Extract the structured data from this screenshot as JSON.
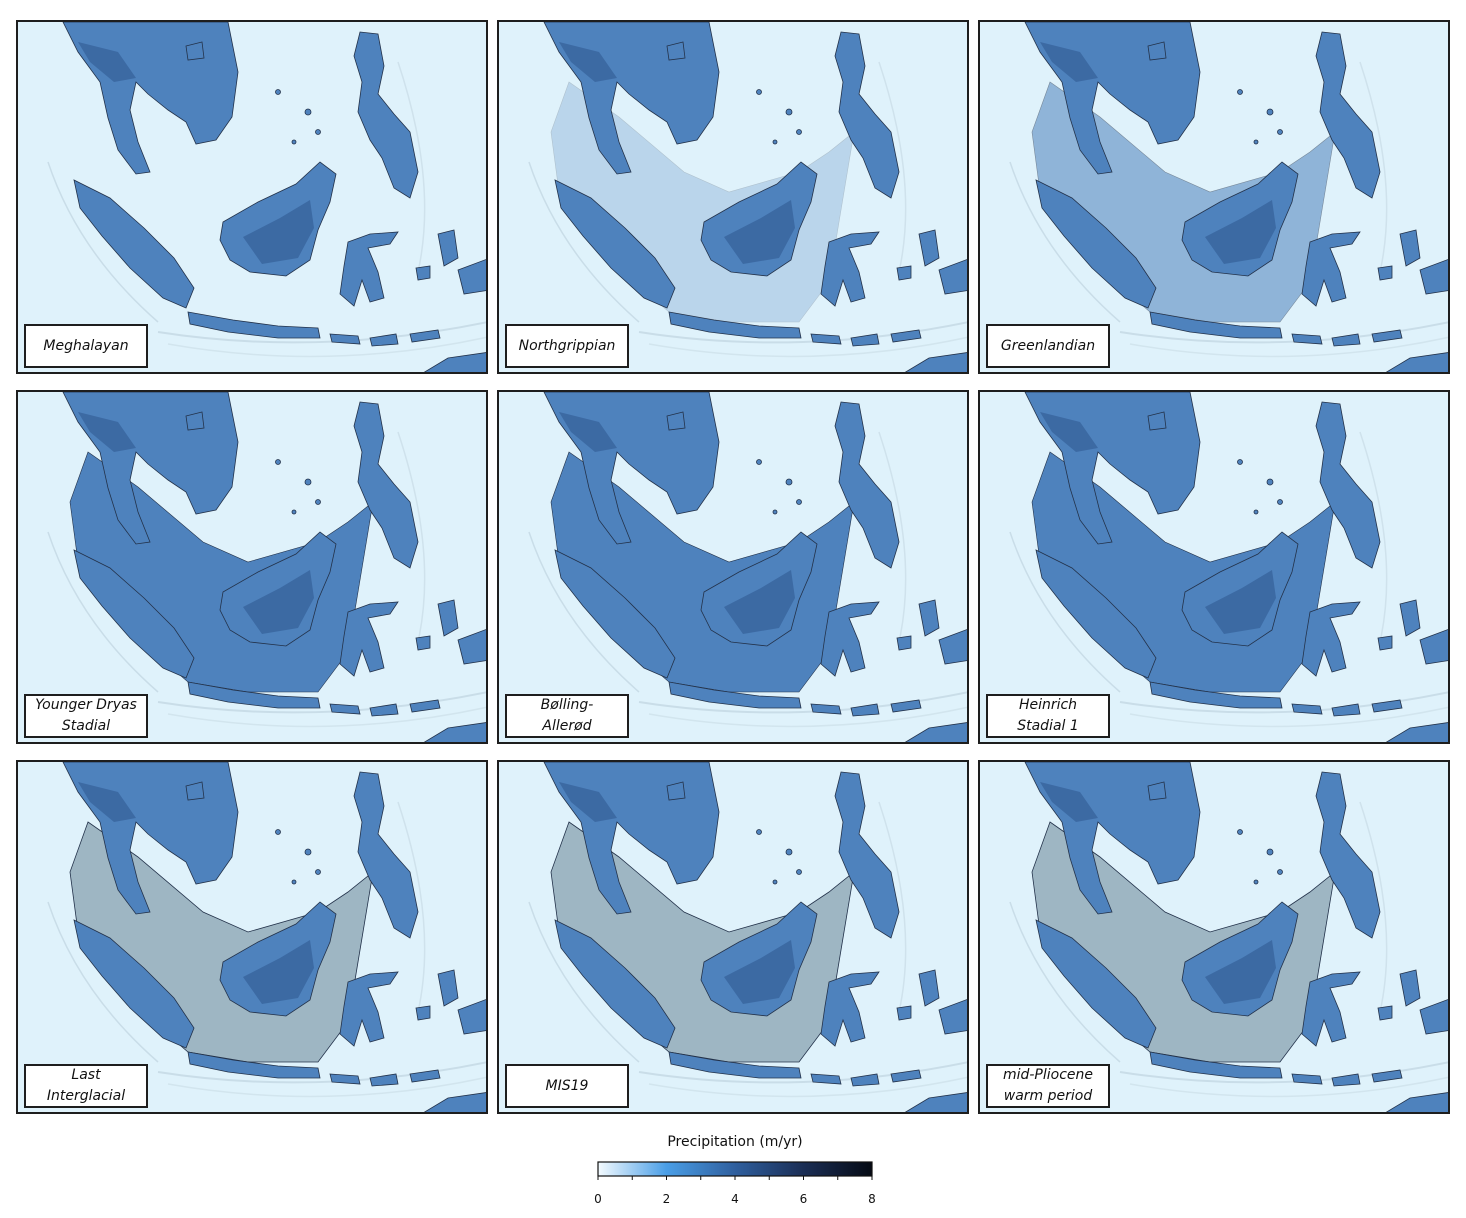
{
  "panels": [
    {
      "label": "Meghalayan",
      "sea_level": 0,
      "shelf_tint": false
    },
    {
      "label": "Northgrippian",
      "sea_level": 0.25,
      "shelf_tint": false
    },
    {
      "label": "Greenlandian",
      "sea_level": 0.55,
      "shelf_tint": false
    },
    {
      "label": "Younger Dryas\nStadial",
      "sea_level": 1,
      "shelf_tint": false
    },
    {
      "label": "Bølling-\nAllerød",
      "sea_level": 1,
      "shelf_tint": false
    },
    {
      "label": "Heinrich\nStadial 1",
      "sea_level": 1,
      "shelf_tint": false
    },
    {
      "label": "Last\nInterglacial",
      "sea_level": 0,
      "shelf_tint": true
    },
    {
      "label": "MIS19",
      "sea_level": 0,
      "shelf_tint": true
    },
    {
      "label": "mid-Pliocene\nwarm period",
      "sea_level": 0,
      "shelf_tint": true
    }
  ],
  "legend": {
    "title": "Precipitation (m/yr)",
    "min": 0,
    "max": 8,
    "tick_labels": [
      "0",
      "2",
      "4",
      "6",
      "8"
    ],
    "color_stops": [
      "#f4fbff",
      "#4a9ee6",
      "#2f5f9e",
      "#1b2e55",
      "#050a14"
    ]
  },
  "colors": {
    "ocean": "#dff2fb",
    "land": "#4e82bd",
    "land_dark": "#345f98",
    "shelf_exposed": "#4e82bd",
    "shelf_grey": "#9eb6c3",
    "outline": "#23324a"
  }
}
